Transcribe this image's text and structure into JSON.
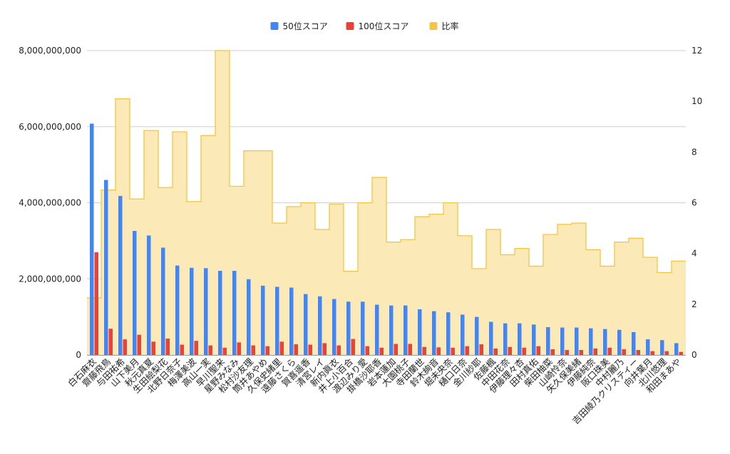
{
  "chart_data": {
    "type": "bar",
    "title": "",
    "xlabel": "",
    "ylabel": "",
    "ylim_left": [
      0,
      8000000000
    ],
    "ylim_right": [
      0,
      12
    ],
    "left_ticks": [
      "0",
      "2,000,000,000",
      "4,000,000,000",
      "6,000,000,000",
      "8,000,000,000"
    ],
    "left_tick_values": [
      0,
      2000000000,
      4000000000,
      6000000000,
      8000000000
    ],
    "right_ticks": [
      "0",
      "2",
      "4",
      "6",
      "8",
      "10",
      "12"
    ],
    "right_tick_values": [
      0,
      2,
      4,
      6,
      8,
      10,
      12
    ],
    "grid": true,
    "legend_position": "top-center",
    "categories": [
      "白石麻衣",
      "齋藤飛鳥",
      "与田祐希",
      "山下美月",
      "秋元真夏",
      "生田絵梨花",
      "北野日奈子",
      "梅澤美波",
      "高山一実",
      "早川聖来",
      "星野みなみ",
      "松村沙友理",
      "筒井あやめ",
      "久保史緒里",
      "遠藤さくら",
      "賀喜遥香",
      "清宮レイ",
      "新内眞衣",
      "井上小百合",
      "渡辺みり愛",
      "掛橋沙耶香",
      "岩本蓮加",
      "大園桃子",
      "寺田蘭世",
      "鈴木絢音",
      "堀未央奈",
      "樋口日奈",
      "金川紗耶",
      "佐藤楓",
      "中田花奈",
      "伊藤理々杏",
      "田村真佑",
      "柴田柚菜",
      "山崎怜奈",
      "矢久保美緒",
      "伊藤純奈",
      "阪口珠美",
      "中村麗乃",
      "吉田綾乃クリスティー",
      "向井葉月",
      "北川悠理",
      "和田まあや"
    ],
    "series": [
      {
        "name": "50位スコア",
        "color": "#4285f4",
        "axis": "left",
        "values": [
          6080000000,
          4600000000,
          4180000000,
          3260000000,
          3140000000,
          2820000000,
          2350000000,
          2290000000,
          2280000000,
          2210000000,
          2210000000,
          1990000000,
          1820000000,
          1790000000,
          1770000000,
          1600000000,
          1540000000,
          1470000000,
          1400000000,
          1400000000,
          1320000000,
          1300000000,
          1300000000,
          1200000000,
          1150000000,
          1120000000,
          1060000000,
          1000000000,
          870000000,
          830000000,
          830000000,
          800000000,
          730000000,
          720000000,
          720000000,
          700000000,
          680000000,
          660000000,
          600000000,
          410000000,
          390000000,
          310000000
        ]
      },
      {
        "name": "100位スコア",
        "color": "#ea4335",
        "axis": "left",
        "values": [
          2700000000,
          690000000,
          410000000,
          530000000,
          350000000,
          430000000,
          270000000,
          370000000,
          250000000,
          190000000,
          330000000,
          250000000,
          230000000,
          350000000,
          280000000,
          270000000,
          310000000,
          250000000,
          420000000,
          230000000,
          190000000,
          290000000,
          290000000,
          210000000,
          200000000,
          190000000,
          230000000,
          280000000,
          170000000,
          210000000,
          190000000,
          230000000,
          150000000,
          130000000,
          130000000,
          170000000,
          190000000,
          150000000,
          130000000,
          100000000,
          100000000,
          80000000
        ]
      },
      {
        "name": "比率",
        "color": "#f4c542",
        "fill": "#fbe9b7",
        "type": "stepped-area",
        "axis": "right",
        "values": [
          2.25,
          6.5,
          10.1,
          6.15,
          8.85,
          6.6,
          8.8,
          6.05,
          8.65,
          12.0,
          6.65,
          8.05,
          8.05,
          5.2,
          5.85,
          6.0,
          4.95,
          5.95,
          3.3,
          6.0,
          7.0,
          4.45,
          4.55,
          5.45,
          5.55,
          6.0,
          4.7,
          3.4,
          4.95,
          3.95,
          4.2,
          3.5,
          4.75,
          5.15,
          5.2,
          4.15,
          3.5,
          4.45,
          4.6,
          3.85,
          3.25,
          3.7
        ]
      }
    ]
  }
}
